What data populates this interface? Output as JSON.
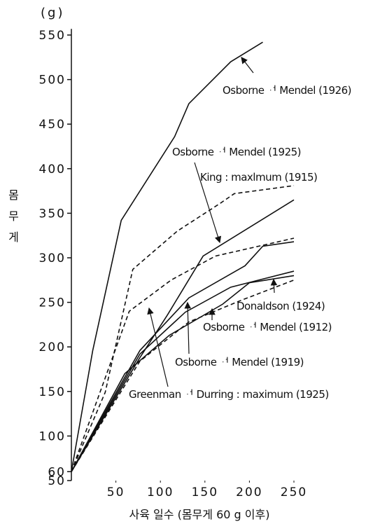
{
  "chart_data": {
    "type": "line",
    "unit_label": "(g)",
    "y_label": "몸무게",
    "x_label": "사육 일수 (몸무게 60 g 이후)",
    "xlim": [
      0,
      260
    ],
    "ylim": [
      50,
      560
    ],
    "xticks": [
      50,
      100,
      150,
      200,
      250
    ],
    "yticks": [
      50,
      60,
      100,
      150,
      200,
      250,
      300,
      350,
      400,
      450,
      500,
      550
    ],
    "series": [
      {
        "name": "Osborne ᆟ Mendel (1926)",
        "color": "#111",
        "dash": false,
        "x": [
          0,
          24,
          56,
          116,
          132,
          179,
          215
        ],
        "values": [
          60,
          196,
          342,
          436,
          473,
          520,
          542
        ]
      },
      {
        "name": "Osborne ᆟ Mendel (1925)",
        "color": "#111",
        "dash": false,
        "x": [
          0,
          77,
          108,
          148,
          250
        ],
        "values": [
          60,
          188,
          236,
          302,
          365
        ]
      },
      {
        "name": "King : maxlmum (1915)",
        "color": "#111",
        "dash": true,
        "x": [
          0,
          38,
          69,
          119,
          167,
          183,
          250
        ],
        "values": [
          60,
          149,
          287,
          330,
          361,
          372,
          381
        ]
      },
      {
        "name": "Donaldson (1924)",
        "color": "#111",
        "dash": true,
        "x": [
          0,
          77,
          132,
          190,
          250
        ],
        "values": [
          60,
          184,
          228,
          252,
          275
        ]
      },
      {
        "name": "Osborne ᆟ Mendel (1912)",
        "color": "#111",
        "dash": false,
        "x": [
          0,
          77,
          128,
          179,
          250
        ],
        "values": [
          60,
          192,
          239,
          267,
          285
        ]
      },
      {
        "name": "Osborne ᆟ Mendel (1919)",
        "color": "#111",
        "dash": false,
        "x": [
          0,
          77,
          132,
          195,
          215,
          250
        ],
        "values": [
          60,
          196,
          255,
          291,
          313,
          318
        ]
      },
      {
        "name": "Greenman ᆟ Durring : maximum (1925)",
        "color": "#111",
        "dash": true,
        "x": [
          0,
          65,
          112,
          162,
          250
        ],
        "values": [
          60,
          240,
          275,
          302,
          322
        ]
      },
      {
        "color": "#111",
        "dash": false,
        "x": [
          0,
          60,
          110,
          170,
          200,
          250
        ],
        "values": [
          60,
          170,
          213,
          248,
          272,
          280
        ]
      }
    ]
  }
}
